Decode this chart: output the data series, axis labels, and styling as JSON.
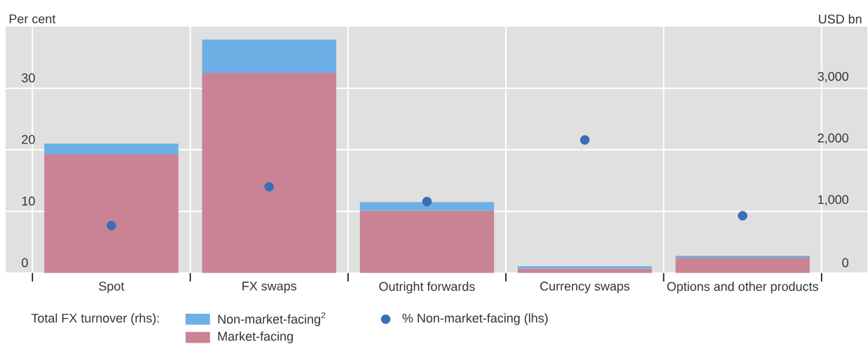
{
  "chart_data": {
    "type": "bar",
    "stacked": true,
    "ylabel": "Per cent",
    "y2label": "USD bn",
    "legend_title": "Total FX turnover (rhs):",
    "categories": [
      "Spot",
      "FX swaps",
      "Outright forwards",
      "Currency swaps",
      "Options and other products"
    ],
    "ylim": [
      0,
      40
    ],
    "yticks": [
      0,
      10,
      20,
      30
    ],
    "y2lim": [
      0,
      4000
    ],
    "y2ticks": [
      0,
      {
        "value": 1000,
        "label": "1,000"
      },
      {
        "value": 2000,
        "label": "2,000"
      },
      {
        "value": 3000,
        "label": "3,000"
      }
    ],
    "grid": true,
    "legend": "bottom",
    "marker": "circle",
    "series": [
      {
        "name": "Market-facing",
        "color": "#c98394",
        "axis": "y2",
        "values": [
          1930,
          3250,
          1010,
          70,
          250
        ]
      },
      {
        "name": "Non-market-facing$^{2}$",
        "color": "#6cb0e6",
        "axis": "y2",
        "values": [
          170,
          540,
          140,
          40,
          30
        ]
      },
      {
        "name": "% Non-market-facing (lhs)",
        "type": "scatter",
        "axis": "y",
        "color": "#3a6fb5",
        "x": [
          "Spot",
          "FX swaps",
          "Outright forwards",
          "Currency swaps",
          "Options and other products"
        ],
        "values": [
          7.7,
          14.0,
          11.6,
          21.6,
          9.3
        ]
      }
    ]
  }
}
